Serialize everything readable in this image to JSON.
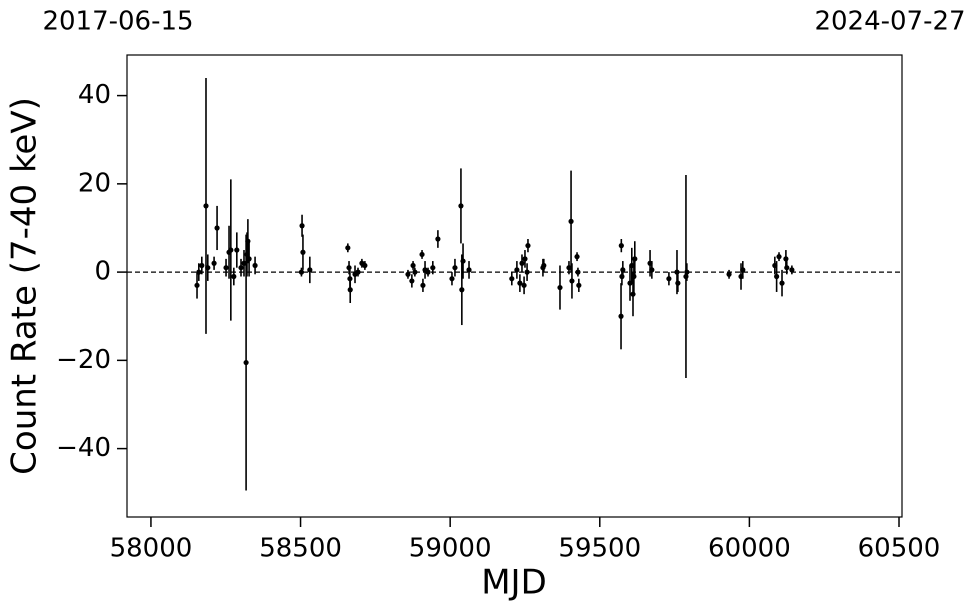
{
  "chart_data": {
    "type": "errorbar",
    "x_label": "MJD",
    "y_label": "Count Rate (7-40 keV)",
    "top_labels": [
      "2017-06-15",
      "2024-07-27"
    ],
    "xlim": [
      57920,
      60510
    ],
    "ylim": [
      -55.5,
      49.2
    ],
    "xticks": [
      58000,
      58500,
      59000,
      59500,
      60000,
      60500
    ],
    "yticks": [
      {
        "value": -40,
        "label": "−40"
      },
      {
        "value": -20,
        "label": "−20"
      },
      0,
      20,
      40
    ],
    "reference_line": 0,
    "color": "#000000",
    "x": [
      58154,
      58160,
      58170,
      58184,
      58190,
      58211,
      58221,
      58251,
      58261,
      58267,
      58277,
      58287,
      58301,
      58311,
      58318,
      58321,
      58324,
      58328,
      58348,
      58505,
      58508,
      58503,
      58531,
      58658,
      58662,
      58665,
      58666,
      58682,
      58692,
      58705,
      58715,
      58859,
      58872,
      58876,
      58882,
      58906,
      58909,
      58916,
      58926,
      58942,
      58959,
      59006,
      59016,
      59036,
      59039,
      59043,
      59063,
      59206,
      59223,
      59233,
      59240,
      59247,
      59250,
      59257,
      59260,
      59310,
      59313,
      59367,
      59397,
      59404,
      59407,
      59424,
      59427,
      59430,
      59571,
      59572,
      59574,
      59577,
      59601,
      59607,
      59611,
      59614,
      59617,
      59668,
      59674,
      59731,
      59758,
      59761,
      59788,
      59791,
      59932,
      59972,
      59978,
      60085,
      60091,
      60099,
      60109,
      60122,
      60125,
      60142
    ],
    "values": [
      -3,
      0,
      1.5,
      15,
      1,
      2,
      10,
      1,
      4.5,
      5,
      -1,
      5,
      1,
      2,
      -20.5,
      4,
      7,
      3,
      1.5,
      10.5,
      4.5,
      0,
      0.5,
      5.5,
      1,
      -1.5,
      -4,
      -0.5,
      0,
      2,
      1.5,
      -0.5,
      -2,
      1.5,
      0,
      4,
      -3,
      0.5,
      0,
      1,
      7.5,
      -1.5,
      1,
      15,
      -4,
      2.5,
      0.5,
      -1.5,
      0.5,
      -2.5,
      2,
      -3,
      3,
      0,
      6,
      1,
      1.5,
      -3.5,
      1,
      11.5,
      -2,
      3.5,
      0,
      -3,
      -10,
      6,
      -1,
      0.5,
      -2.5,
      1.5,
      -5,
      -1,
      3,
      2,
      0.5,
      -1.5,
      0,
      -2.5,
      -1,
      0,
      -0.5,
      -1,
      0.5,
      1.5,
      -1,
      3.5,
      -2.5,
      3,
      1,
      0.5
    ],
    "errors": [
      3,
      2,
      2,
      29,
      3,
      1.5,
      5,
      2,
      6,
      16,
      2,
      4,
      2,
      3,
      29,
      5,
      5,
      4,
      2,
      2.5,
      4,
      1,
      3,
      1,
      1.5,
      2,
      3,
      2,
      1,
      1,
      1,
      1,
      1.5,
      1,
      1,
      1,
      1.5,
      2,
      1,
      1.5,
      2,
      1.5,
      2,
      8.5,
      8,
      4,
      2,
      1.5,
      2,
      2,
      2,
      2,
      2,
      2,
      1.5,
      2,
      1.5,
      5,
      1.5,
      11.5,
      4,
      1,
      1,
      1.5,
      7.5,
      1.5,
      2,
      2,
      4,
      4,
      5,
      4,
      4,
      3,
      2,
      1.5,
      5,
      2,
      23,
      2,
      1,
      3,
      2,
      2,
      3.5,
      1,
      3,
      2,
      1.5,
      1
    ]
  }
}
